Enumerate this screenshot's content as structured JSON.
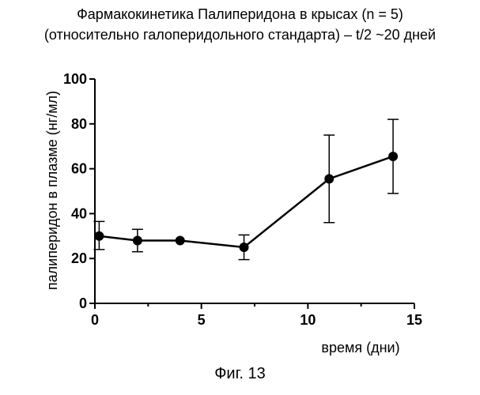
{
  "title_line1": "Фармакокинетика Палиперидона в крысах (n = 5)",
  "title_line2": "(относительно галоперидольного стандарта) – t/2 ~20 дней",
  "caption": "Фиг. 13",
  "chart_data": {
    "type": "line",
    "title": "Фармакокинетика Палиперидона в крысах (n = 5) (относительно галоперидольного стандарта) – t/2 ~20 дней",
    "xlabel": "время (дни)",
    "ylabel": "палиперидон в плазме (нг/мл)",
    "xlim": [
      0,
      15
    ],
    "ylim": [
      0,
      100
    ],
    "x_ticks": [
      "0",
      "5",
      "10",
      "15"
    ],
    "y_ticks": [
      "0",
      "20",
      "40",
      "60",
      "80",
      "100"
    ],
    "grid": false,
    "series": [
      {
        "x": [
          0.2,
          2,
          4,
          7,
          11,
          14
        ],
        "y": [
          30,
          28,
          28,
          25,
          55.5,
          65.5
        ],
        "error_low": [
          24,
          23,
          null,
          19.5,
          36,
          49
        ],
        "error_high": [
          36.5,
          33,
          null,
          30.5,
          75,
          82
        ],
        "color": "#000000",
        "marker": "circle"
      }
    ]
  }
}
